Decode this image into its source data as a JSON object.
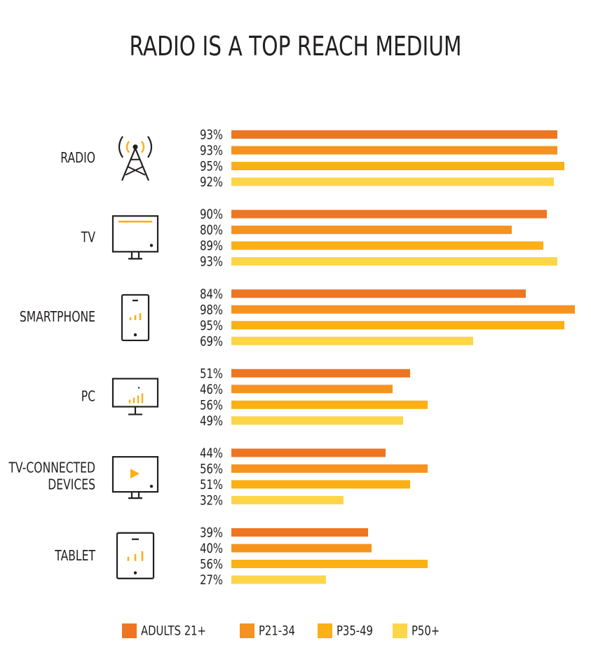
{
  "chart_data": {
    "type": "bar",
    "orientation": "horizontal",
    "title": "RADIO IS A TOP REACH MEDIUM",
    "categories": [
      {
        "label_lines": [
          "RADIO"
        ],
        "icon": "radio-tower-icon"
      },
      {
        "label_lines": [
          "TV"
        ],
        "icon": "tv-icon"
      },
      {
        "label_lines": [
          "SMARTPHONE"
        ],
        "icon": "smartphone-icon"
      },
      {
        "label_lines": [
          "PC"
        ],
        "icon": "pc-monitor-icon"
      },
      {
        "label_lines": [
          "TV-CONNECTED",
          "DEVICES"
        ],
        "icon": "tv-connected-device-icon"
      },
      {
        "label_lines": [
          "TABLET"
        ],
        "icon": "tablet-icon"
      }
    ],
    "series": [
      {
        "name": "ADULTS 21+",
        "color": "#ee7623",
        "values": [
          93,
          90,
          84,
          51,
          44,
          39
        ]
      },
      {
        "name": "P21-34",
        "color": "#f6931e",
        "values": [
          93,
          80,
          98,
          46,
          56,
          40
        ]
      },
      {
        "name": "P35-49",
        "color": "#fbb016",
        "values": [
          95,
          89,
          95,
          56,
          51,
          56
        ]
      },
      {
        "name": "P50+",
        "color": "#fdd548",
        "values": [
          92,
          93,
          69,
          49,
          32,
          27
        ]
      }
    ],
    "value_suffix": "%",
    "xlim": [
      0,
      100
    ],
    "grid": false,
    "legend_position": "bottom"
  },
  "colors": {
    "icon_stroke": "#231f20",
    "icon_accent": "#fbb016",
    "text": "#231f20"
  }
}
